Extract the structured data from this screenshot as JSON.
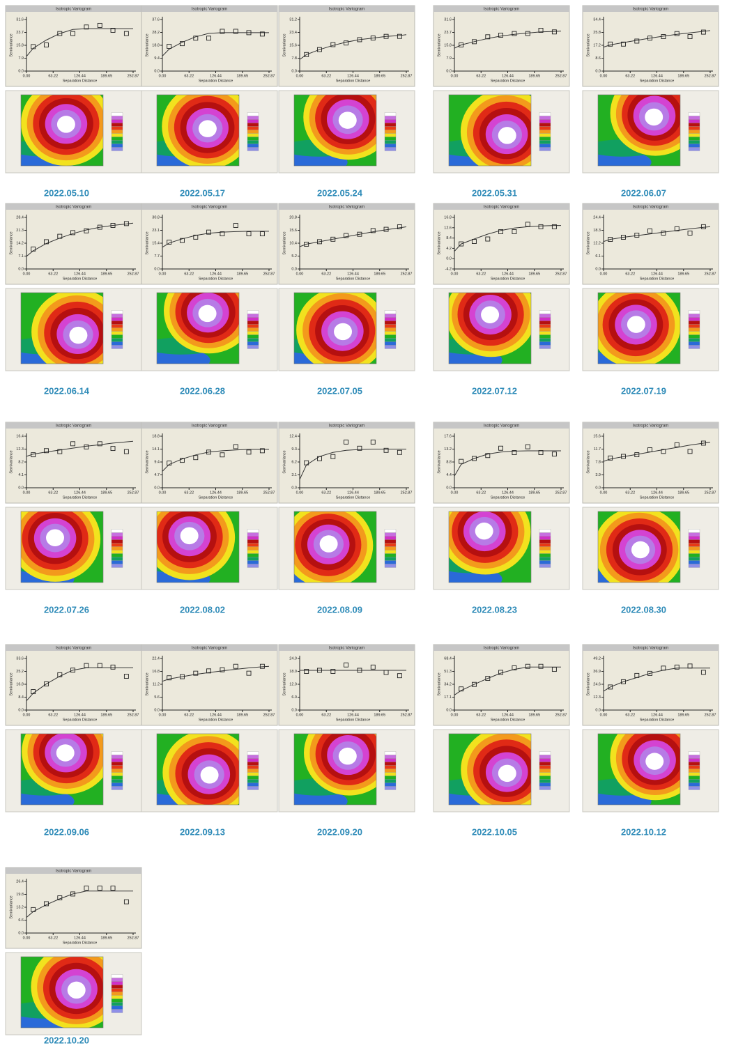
{
  "common": {
    "title": "Isotropic Variogram",
    "x_label": "Separation Distance",
    "y_label": "Semivariance",
    "x": [
      0,
      16,
      47,
      79,
      110,
      142,
      174,
      205,
      237,
      252.87
    ],
    "xlim": [
      0,
      252.87
    ],
    "xticks": [
      {
        "value": 0,
        "label": "0.00"
      },
      63.22,
      126.44,
      189.65,
      252.87
    ]
  },
  "chart_data": [
    {
      "type": "scatter",
      "date": "2022.05.10",
      "ylim": [
        0,
        31.6
      ],
      "yticks": [
        {
          "value": 0,
          "label": "0.0"
        },
        7.9,
        15.8,
        23.7,
        31.6
      ],
      "points": [
        null,
        15,
        16,
        23,
        23,
        27,
        28,
        25,
        23,
        null
      ],
      "fit": [
        9,
        14,
        19,
        23,
        25.5,
        26,
        26,
        26,
        26,
        26
      ]
    },
    {
      "type": "scatter",
      "date": "2022.05.17",
      "ylim": [
        0,
        37.6
      ],
      "yticks": [
        {
          "value": 0,
          "label": "0.0"
        },
        9.4,
        18.8,
        28.2,
        37.6
      ],
      "points": [
        null,
        18,
        20,
        24,
        24,
        29,
        29,
        28,
        27,
        null
      ],
      "fit": [
        11,
        16,
        21,
        25,
        27.5,
        28,
        28,
        28,
        28,
        28
      ]
    },
    {
      "type": "scatter",
      "date": "2022.05.24",
      "ylim": [
        0,
        31.2
      ],
      "yticks": [
        {
          "value": 0,
          "label": "0.0"
        },
        7.8,
        15.6,
        23.4,
        31.2
      ],
      "points": [
        null,
        10,
        13,
        16,
        17,
        19,
        20,
        21,
        21,
        null
      ],
      "fit": [
        7,
        10,
        13,
        15.5,
        17.5,
        19,
        20,
        21,
        21.5,
        22
      ]
    },
    {
      "type": "scatter",
      "date": "2022.05.31",
      "ylim": [
        0,
        31.6
      ],
      "yticks": [
        {
          "value": 0,
          "label": "0.0"
        },
        7.9,
        15.8,
        23.7,
        31.6
      ],
      "points": [
        null,
        16,
        18,
        21,
        22,
        23,
        23,
        25,
        24,
        null
      ],
      "fit": [
        14,
        16,
        18,
        20,
        21.5,
        22.5,
        23.3,
        24,
        24.3,
        24.5
      ]
    },
    {
      "type": "scatter",
      "date": "2022.06.07",
      "ylim": [
        0,
        34.4
      ],
      "yticks": [
        {
          "value": 0,
          "label": "0.0"
        },
        8.6,
        17.2,
        25.8,
        34.4
      ],
      "points": [
        null,
        18,
        18,
        20,
        22,
        23,
        25,
        23,
        26,
        null
      ],
      "fit": [
        16,
        17.5,
        19,
        20.5,
        22,
        23.3,
        24.5,
        25.5,
        26.5,
        27
      ]
    },
    {
      "type": "scatter",
      "date": "2022.06.14",
      "ylim": [
        0,
        28.4
      ],
      "yticks": [
        {
          "value": 0,
          "label": "0.0"
        },
        7.1,
        14.2,
        21.3,
        28.4
      ],
      "points": [
        null,
        11,
        15,
        18,
        20,
        21,
        23,
        24,
        25,
        null
      ],
      "fit": [
        7,
        10,
        14,
        17,
        19.5,
        21.5,
        23,
        24,
        24.8,
        25.2
      ]
    },
    {
      "type": "scatter",
      "date": "2022.06.28",
      "ylim": [
        0,
        30.8
      ],
      "yticks": [
        {
          "value": 0,
          "label": "0.0"
        },
        7.7,
        15.4,
        23.1,
        30.8
      ],
      "points": [
        null,
        16,
        17,
        19,
        22,
        21,
        26,
        21,
        21,
        null
      ],
      "fit": [
        13,
        15.5,
        18,
        20,
        21.3,
        22,
        22.3,
        22.5,
        22.5,
        22.5
      ]
    },
    {
      "type": "scatter",
      "date": "2022.07.05",
      "ylim": [
        0,
        20.8
      ],
      "yticks": [
        {
          "value": 0,
          "label": "0.0"
        },
        5.2,
        10.4,
        15.6,
        20.8
      ],
      "points": [
        null,
        10,
        11,
        12,
        13.5,
        14,
        15.5,
        16,
        17,
        null
      ],
      "fit": [
        9,
        10,
        11,
        12,
        13,
        14,
        15,
        15.8,
        16.6,
        17
      ]
    },
    {
      "type": "scatter",
      "date": "2022.07.12",
      "ylim": [
        -4.2,
        16.8
      ],
      "yticks": [
        -4.2,
        {
          "value": 0,
          "label": "0.0"
        },
        4.2,
        8.4,
        12.6,
        16.8
      ],
      "points": [
        null,
        6,
        7,
        8,
        11,
        11,
        14,
        13,
        13,
        null
      ],
      "fit": [
        3,
        6,
        8,
        10,
        11.5,
        12.5,
        13,
        13.3,
        13.5,
        13.5
      ]
    },
    {
      "type": "scatter",
      "date": "2022.07.19",
      "ylim": [
        0,
        24.4
      ],
      "yticks": [
        {
          "value": 0,
          "label": "0.0"
        },
        6.1,
        12.2,
        18.3,
        24.4
      ],
      "points": [
        null,
        14,
        15,
        16,
        18,
        17,
        19,
        17,
        20,
        null
      ],
      "fit": [
        13,
        14,
        15,
        15.8,
        16.6,
        17.4,
        18.2,
        19,
        19.7,
        20
      ]
    },
    {
      "type": "scatter",
      "date": "2022.07.26",
      "ylim": [
        0,
        16.4
      ],
      "yticks": [
        {
          "value": 0,
          "label": "0.0"
        },
        4.1,
        8.2,
        12.3,
        16.4
      ],
      "points": [
        null,
        10.5,
        11.8,
        11.5,
        14,
        13,
        14,
        12.5,
        11.5,
        null
      ],
      "fit": [
        10,
        10.7,
        11.4,
        12,
        12.6,
        13.2,
        13.7,
        14.2,
        14.6,
        14.8
      ]
    },
    {
      "type": "scatter",
      "date": "2022.08.02",
      "ylim": [
        0,
        18.8
      ],
      "yticks": [
        {
          "value": 0,
          "label": "0.0"
        },
        4.7,
        9.4,
        14.1,
        18.8
      ],
      "points": [
        null,
        9,
        10,
        11,
        13,
        12,
        15,
        13,
        13.5,
        null
      ],
      "fit": [
        6,
        8.5,
        10.5,
        12,
        13,
        13.5,
        13.8,
        14,
        14,
        14
      ]
    },
    {
      "type": "scatter",
      "date": "2022.08.09",
      "ylim": [
        0,
        12.4
      ],
      "yticks": [
        {
          "value": 0,
          "label": "0.0"
        },
        3.1,
        6.2,
        9.3,
        12.4
      ],
      "points": [
        null,
        6,
        7,
        7.5,
        11,
        9.5,
        11,
        9,
        8.5,
        null
      ],
      "fit": [
        2,
        5.5,
        7.5,
        8.5,
        9,
        9.2,
        9.3,
        9.3,
        9.3,
        9.3
      ]
    },
    {
      "type": "scatter",
      "date": "2022.08.23",
      "ylim": [
        0,
        17.6
      ],
      "yticks": [
        {
          "value": 0,
          "label": "0.0"
        },
        4.4,
        8.8,
        13.2,
        17.6
      ],
      "points": [
        null,
        9,
        10,
        11,
        13.5,
        12,
        14,
        12,
        11.5,
        null
      ],
      "fit": [
        4,
        8,
        10,
        11.5,
        12.2,
        12.5,
        12.6,
        12.6,
        12.6,
        12.6
      ]
    },
    {
      "type": "scatter",
      "date": "2022.08.30",
      "ylim": [
        0,
        15.6
      ],
      "yticks": [
        {
          "value": 0,
          "label": "0.0"
        },
        3.9,
        7.8,
        11.7,
        15.6
      ],
      "points": [
        null,
        9,
        9.5,
        10,
        11.5,
        11,
        13,
        11,
        13.5,
        null
      ],
      "fit": [
        8,
        8.7,
        9.4,
        10.1,
        10.8,
        11.5,
        12.2,
        12.9,
        13.5,
        13.8
      ]
    },
    {
      "type": "scatter",
      "date": "2022.09.06",
      "ylim": [
        0,
        33.6
      ],
      "yticks": [
        {
          "value": 0,
          "label": "0.0"
        },
        8.4,
        16.8,
        25.2,
        33.6
      ],
      "points": [
        null,
        12,
        17,
        23,
        26,
        29,
        29,
        28,
        22,
        null
      ],
      "fit": [
        6,
        11,
        17,
        22,
        26,
        27.5,
        27.5,
        27.5,
        27.5,
        27.5
      ]
    },
    {
      "type": "scatter",
      "date": "2022.09.13",
      "ylim": [
        0,
        22.4
      ],
      "yticks": [
        {
          "value": 0,
          "label": "0.0"
        },
        5.6,
        11.2,
        16.8,
        22.4
      ],
      "points": [
        null,
        14,
        14.5,
        16,
        17,
        17.5,
        19,
        16,
        19,
        null
      ],
      "fit": [
        12.5,
        13.5,
        14.5,
        15.5,
        16.3,
        17,
        17.7,
        18.3,
        18.8,
        19
      ]
    },
    {
      "type": "scatter",
      "date": "2022.09.20",
      "ylim": [
        0,
        24
      ],
      "yticks": [
        {
          "value": 0,
          "label": "0.0"
        },
        {
          "value": 6,
          "label": "6.0"
        },
        {
          "value": 12,
          "label": "12.0"
        },
        {
          "value": 18,
          "label": "18.0"
        },
        {
          "value": 24,
          "label": "24.0"
        }
      ],
      "points": [
        null,
        18,
        18.5,
        18,
        21,
        18.5,
        20,
        17.5,
        16,
        null
      ],
      "fit": [
        18.5,
        18.5,
        18.5,
        18.5,
        18.5,
        18.5,
        18.5,
        18.5,
        18.5,
        18.5
      ]
    },
    {
      "type": "scatter",
      "date": "2022.10.05",
      "ylim": [
        0,
        68.4
      ],
      "yticks": [
        {
          "value": 0,
          "label": "0.0"
        },
        17.1,
        34.2,
        51.3,
        68.4
      ],
      "points": [
        null,
        28,
        34,
        42,
        50,
        56,
        58,
        58,
        54,
        null
      ],
      "fit": [
        20,
        26,
        34,
        42,
        49,
        54,
        57,
        57,
        57,
        57
      ]
    },
    {
      "type": "scatter",
      "date": "2022.10.12",
      "ylim": [
        0,
        49.2
      ],
      "yticks": [
        {
          "value": 0,
          "label": "0.0"
        },
        12.3,
        24.6,
        36.9,
        49.2
      ],
      "points": [
        null,
        22,
        27,
        33,
        35,
        40,
        41,
        42,
        36,
        null
      ],
      "fit": [
        18,
        22,
        27,
        31,
        35,
        38,
        40,
        40,
        40,
        40
      ]
    },
    {
      "type": "scatter",
      "date": "2022.10.20",
      "ylim": [
        0,
        26.4
      ],
      "yticks": [
        {
          "value": 0,
          "label": "0.0"
        },
        6.6,
        13.2,
        19.8,
        26.4
      ],
      "points": [
        null,
        12,
        15,
        18,
        20,
        23,
        23,
        23,
        16,
        null
      ],
      "fit": [
        8,
        11,
        14.5,
        17.5,
        20,
        21.5,
        21.5,
        21.5,
        21.5,
        21.5
      ]
    }
  ]
}
